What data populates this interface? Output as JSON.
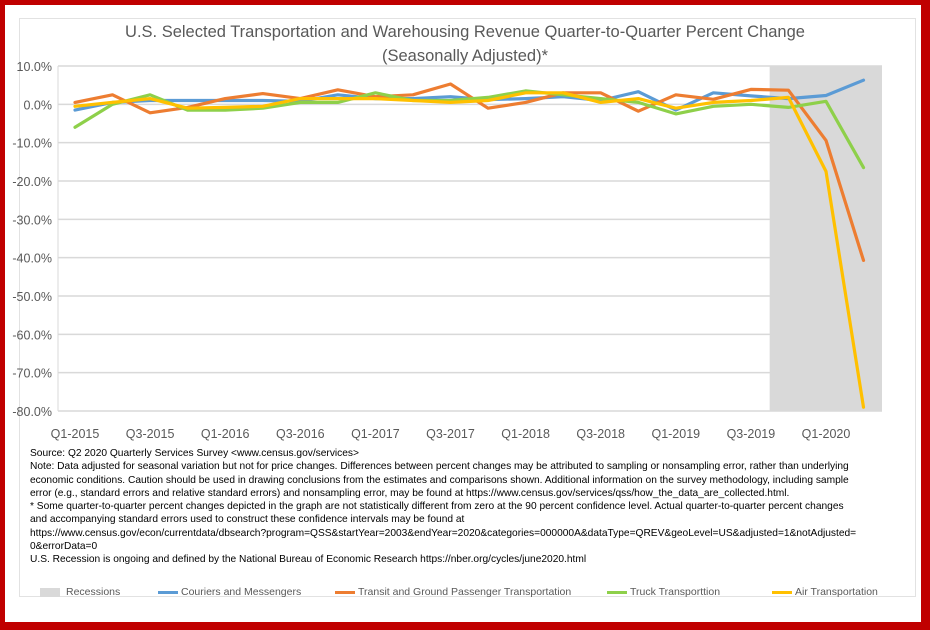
{
  "chart_data": {
    "type": "line",
    "title": "U.S. Selected Transportation and Warehousing Revenue Quarter-to-Quarter Percent Change",
    "subtitle": "(Seasonally Adjusted)*",
    "xlabel": "",
    "ylabel": "",
    "ylim": [
      -80,
      10
    ],
    "y_ticks": [
      "10.0%",
      "0.0%",
      "-10.0%",
      "-20.0%",
      "-30.0%",
      "-40.0%",
      "-50.0%",
      "-60.0%",
      "-70.0%",
      "-80.0%"
    ],
    "y_tick_values": [
      10,
      0,
      -10,
      -20,
      -30,
      -40,
      -50,
      -60,
      -70,
      -80
    ],
    "grid": true,
    "x": [
      "Q1-2015",
      "Q2-2015",
      "Q3-2015",
      "Q4-2015",
      "Q1-2016",
      "Q2-2016",
      "Q3-2016",
      "Q4-2016",
      "Q1-2017",
      "Q2-2017",
      "Q3-2017",
      "Q4-2017",
      "Q1-2018",
      "Q2-2018",
      "Q3-2018",
      "Q4-2018",
      "Q1-2019",
      "Q2-2019",
      "Q3-2019",
      "Q4-2019",
      "Q1-2020",
      "Q2-2020"
    ],
    "x_tick_labels": [
      "Q1-2015",
      "Q3-2015",
      "Q1-2016",
      "Q3-2016",
      "Q1-2017",
      "Q3-2017",
      "Q1-2018",
      "Q3-2018",
      "Q1-2019",
      "Q3-2019",
      "Q1-2020"
    ],
    "recession": {
      "name": "Recessions",
      "start": "Q4-2019",
      "end": "Q2-2020",
      "color": "#d9d9d9"
    },
    "series": [
      {
        "name": "Couriers and Messengers",
        "color": "#5b9bd5",
        "values": [
          -1.5,
          0.5,
          1.0,
          1.0,
          1.0,
          1.0,
          0.8,
          2.5,
          1.5,
          1.5,
          2.0,
          1.2,
          1.5,
          2.0,
          1.0,
          3.3,
          -1.5,
          3.0,
          2.2,
          1.5,
          2.3,
          6.3
        ]
      },
      {
        "name": "Transit and Ground Passenger Transportation",
        "color": "#ed7d31",
        "values": [
          0.5,
          2.5,
          -2.2,
          -0.8,
          1.5,
          2.8,
          1.5,
          3.8,
          2.0,
          2.5,
          5.3,
          -1.0,
          0.5,
          3.0,
          3.0,
          -1.8,
          2.5,
          1.3,
          3.9,
          3.7,
          -9.4,
          -40.7
        ]
      },
      {
        "name": "Truck Transporttion",
        "color": "#8ed04a",
        "values": [
          -6.0,
          0.0,
          2.5,
          -1.5,
          -1.5,
          -1.0,
          0.5,
          0.5,
          3.0,
          1.0,
          1.0,
          1.8,
          3.5,
          2.5,
          1.5,
          0.5,
          -2.5,
          -0.5,
          0.0,
          -0.8,
          0.8,
          -16.5
        ]
      },
      {
        "name": "Air Transportation",
        "color": "#ffc000",
        "values": [
          -0.5,
          0.5,
          1.5,
          -1.0,
          -0.8,
          -0.5,
          1.5,
          1.5,
          1.5,
          1.0,
          0.5,
          1.0,
          3.0,
          3.0,
          0.5,
          1.5,
          -1.0,
          0.5,
          1.0,
          1.8,
          -17.5,
          -79.0
        ]
      }
    ],
    "legend_position": "bottom",
    "notes": [
      "Source: Q2 2020 Quarterly Services Survey <www.census.gov/services>",
      "Note: Data adjusted for seasonal variation but not for price changes. Differences between percent changes may be attributed to sampling or nonsampling error, rather than underlying",
      "economic conditions. Caution should be used in drawing conclusions from the estimates and comparisons shown. Additional information on the survey methodology, including sample",
      "error (e.g., standard errors and relative standard errors) and nonsampling error, may be found at https://www.census.gov/services/qss/how_the_data_are_collected.html.",
      "* Some quarter-to-quarter percent changes depicted in the graph are not statistically different from zero at the 90 percent confidence level. Actual quarter-to-quarter percent changes",
      "and accompanying standard errors used to construct these confidence intervals may be found at",
      "https://www.census.gov/econ/currentdata/dbsearch?program=QSS&startYear=2003&endYear=2020&categories=000000A&dataType=QREV&geoLevel=US&adjusted=1&notAdjusted=",
      "0&errorData=0",
      "U.S. Recession is ongoing and defined by the National Bureau of Economic Research https://nber.org/cycles/june2020.html"
    ]
  },
  "legend": {
    "recessions": "Recessions",
    "couriers": "Couriers and Messengers",
    "transit": "Transit and Ground Passenger Transportation",
    "truck": "Truck Transporttion",
    "air": "Air Transportation"
  },
  "colors": {
    "border": "#c00000",
    "couriers": "#5b9bd5",
    "transit": "#ed7d31",
    "truck": "#8ed04a",
    "air": "#ffc000",
    "recession": "#d9d9d9"
  }
}
